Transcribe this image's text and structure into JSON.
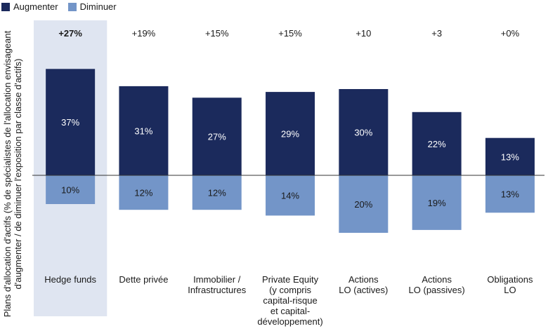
{
  "chart_data": {
    "type": "bar",
    "ylabel_line1": "Plans d'allocation d'actifs (% de spécialistes de l'allocation envisageant",
    "ylabel_line2": "d'augmenter / de diminuer l'exposition par classe d'actifs)",
    "legend": [
      {
        "name": "Augmenter",
        "color": "#1b2a5c"
      },
      {
        "name": "Diminuer",
        "color": "#7395c8"
      }
    ],
    "categories": [
      [
        "Hedge funds"
      ],
      [
        "Dette privée"
      ],
      [
        "Immobilier /",
        "Infrastructures"
      ],
      [
        "Private Equity",
        "(y compris",
        "capital-risque",
        "et capital-",
        "développement)"
      ],
      [
        "Actions",
        "LO (actives)"
      ],
      [
        "Actions",
        "LO (passives)"
      ],
      [
        "Obligations",
        "LO"
      ]
    ],
    "series": [
      {
        "name": "Augmenter",
        "values": [
          37,
          31,
          27,
          29,
          30,
          22,
          13
        ],
        "labels": [
          "37%",
          "31%",
          "27%",
          "29%",
          "30%",
          "22%",
          "13%"
        ]
      },
      {
        "name": "Diminuer",
        "values": [
          10,
          12,
          12,
          14,
          20,
          19,
          13
        ],
        "labels": [
          "10%",
          "12%",
          "12%",
          "14%",
          "20%",
          "19%",
          "13%"
        ]
      }
    ],
    "net_labels": [
      "+27%",
      "+19%",
      "+15%",
      "+15%",
      "+10",
      "+3",
      "+0%"
    ],
    "highlight_index": 0,
    "colors": {
      "increase": "#1b2a5c",
      "decrease": "#7395c8",
      "highlight": "#dfe5f1",
      "axis": "#333333"
    }
  }
}
